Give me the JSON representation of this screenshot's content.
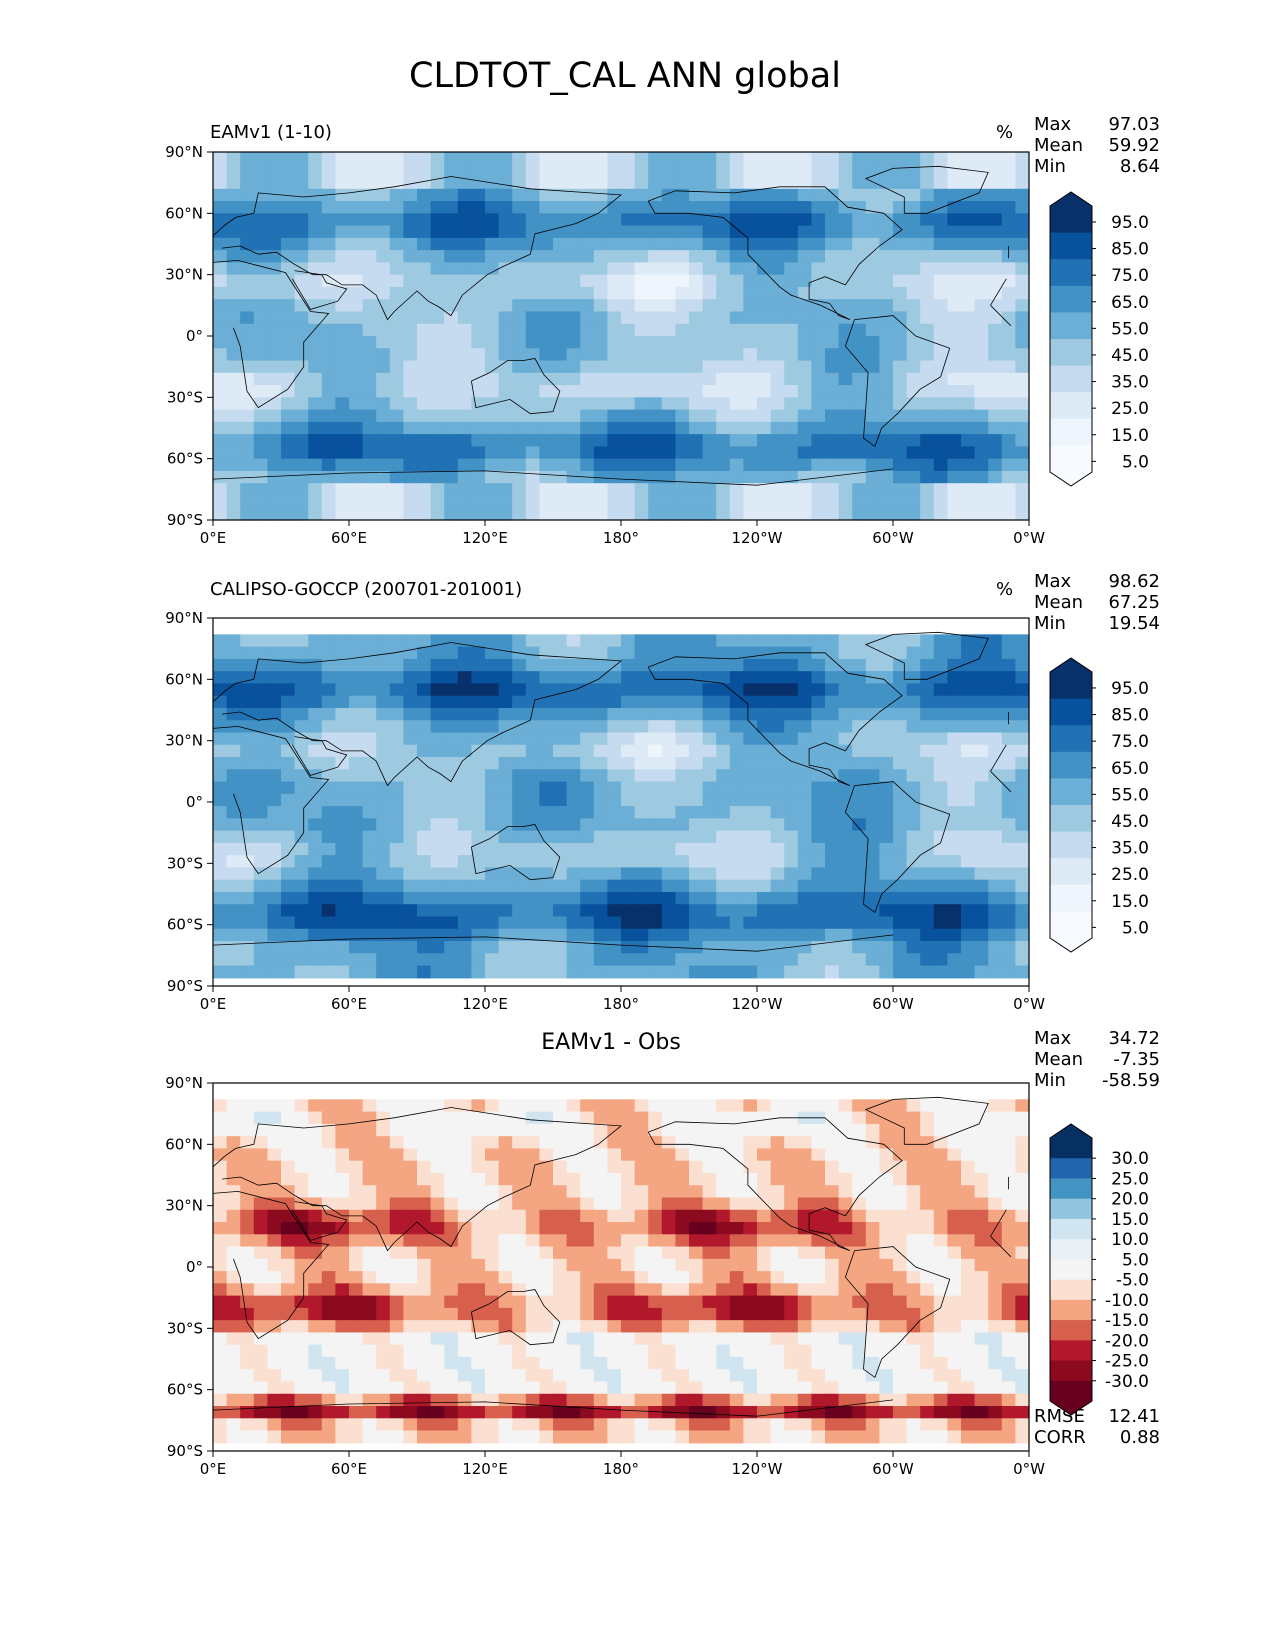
{
  "title": "CLDTOT_CAL ANN global",
  "lat_ticks": [
    "90°N",
    "60°N",
    "30°N",
    "0°",
    "30°S",
    "60°S",
    "90°S"
  ],
  "lon_ticks": [
    "0°E",
    "60°E",
    "120°E",
    "180°",
    "120°W",
    "60°W",
    "0°W"
  ],
  "panels": [
    {
      "title": "EAMv1 (1-10)",
      "unit": "%",
      "stats": [
        {
          "label": "Max",
          "value": "97.03"
        },
        {
          "label": "Mean",
          "value": "59.92"
        },
        {
          "label": "Min",
          "value": "8.64"
        }
      ],
      "colorbar": [
        "95.0",
        "85.0",
        "75.0",
        "65.0",
        "55.0",
        "45.0",
        "35.0",
        "25.0",
        "15.0",
        "5.0"
      ]
    },
    {
      "title": "CALIPSO-GOCCP (200701-201001)",
      "unit": "%",
      "stats": [
        {
          "label": "Max",
          "value": "98.62"
        },
        {
          "label": "Mean",
          "value": "67.25"
        },
        {
          "label": "Min",
          "value": "19.54"
        }
      ],
      "colorbar": [
        "95.0",
        "85.0",
        "75.0",
        "65.0",
        "55.0",
        "45.0",
        "35.0",
        "25.0",
        "15.0",
        "5.0"
      ]
    },
    {
      "title": "EAMv1 - Obs",
      "stats": [
        {
          "label": "Max",
          "value": "34.72"
        },
        {
          "label": "Mean",
          "value": "-7.35"
        },
        {
          "label": "Min",
          "value": "-58.59"
        }
      ],
      "colorbar": [
        "30.0",
        "25.0",
        "20.0",
        "15.0",
        "10.0",
        "5.0",
        "-5.0",
        "-10.0",
        "-15.0",
        "-20.0",
        "-25.0",
        "-30.0"
      ],
      "extra_stats": [
        {
          "label": "RMSE",
          "value": "12.41"
        },
        {
          "label": "CORR",
          "value": "0.88"
        }
      ]
    }
  ],
  "colors": {
    "blues": [
      "#08306b",
      "#08519c",
      "#2171b5",
      "#4292c6",
      "#6baed6",
      "#9ecae1",
      "#c6dbef",
      "#deebf7",
      "#eef5fc",
      "#f7fbff"
    ],
    "diverging": [
      "#053061",
      "#2166ac",
      "#4393c3",
      "#92c5de",
      "#d1e5f0",
      "#e8f0f6",
      "#f4f4f4",
      "#fbe0d2",
      "#f4a582",
      "#d6604d",
      "#b2182b",
      "#8c0a1f",
      "#67001f"
    ]
  }
}
